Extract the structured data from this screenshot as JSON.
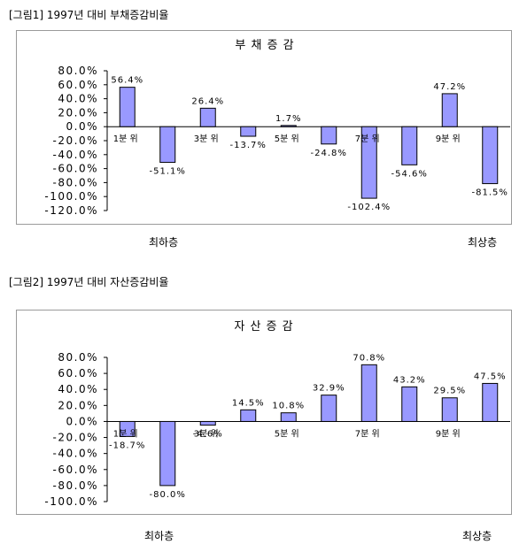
{
  "captions": {
    "figure1": "[그림1] 1997년 대비 부채증감비율",
    "figure2": "[그림2] 1997년 대비 자산증감비율"
  },
  "notes": {
    "figure1_left": "최하층",
    "figure1_right": "최상층",
    "figure2_left": "최하층",
    "figure2_right": "최상층"
  },
  "colors": {
    "bar_fill": "#9999ff",
    "bar_stroke": "#000000"
  },
  "chart_data": [
    {
      "type": "bar",
      "title": "부 채 증 감",
      "categories": [
        "1분 위",
        "",
        "3분 위",
        "",
        "5분 위",
        "",
        "7분 위",
        "",
        "9분 위",
        ""
      ],
      "values": [
        56.4,
        -51.1,
        26.4,
        -13.7,
        1.7,
        -24.8,
        -102.4,
        -54.6,
        47.2,
        -81.5
      ],
      "data_labels": [
        "56.4%",
        "-51.1%",
        "26.4%",
        "-13.7%",
        "1.7%",
        "-24.8%",
        "-102.4%",
        "-54.6%",
        "47.2%",
        "-81.5%"
      ],
      "yticks": [
        "80.0%",
        "60.0%",
        "40.0%",
        "20.0%",
        "0.0%",
        "-20.0%",
        "-40.0%",
        "-60.0%",
        "-80.0%",
        "-100.0%",
        "-120.0%"
      ],
      "ylim": [
        -120,
        80
      ],
      "grid": false,
      "legend": "none"
    },
    {
      "type": "bar",
      "title": "자 산 증 감",
      "categories": [
        "1분 위",
        "",
        "3분 위",
        "",
        "5분 위",
        "",
        "7분 위",
        "",
        "9분 위",
        ""
      ],
      "values": [
        -18.7,
        -80.0,
        -4.6,
        14.5,
        10.8,
        32.9,
        70.8,
        43.2,
        29.5,
        47.5
      ],
      "data_labels": [
        "-18.7%",
        "-80.0%",
        "-4.6%",
        "14.5%",
        "10.8%",
        "32.9%",
        "70.8%",
        "43.2%",
        "29.5%",
        "47.5%"
      ],
      "yticks": [
        "80.0%",
        "60.0%",
        "40.0%",
        "20.0%",
        "0.0%",
        "-20.0%",
        "-40.0%",
        "-60.0%",
        "-80.0%",
        "-100.0%"
      ],
      "ylim": [
        -100,
        80
      ],
      "grid": false,
      "legend": "none"
    }
  ]
}
